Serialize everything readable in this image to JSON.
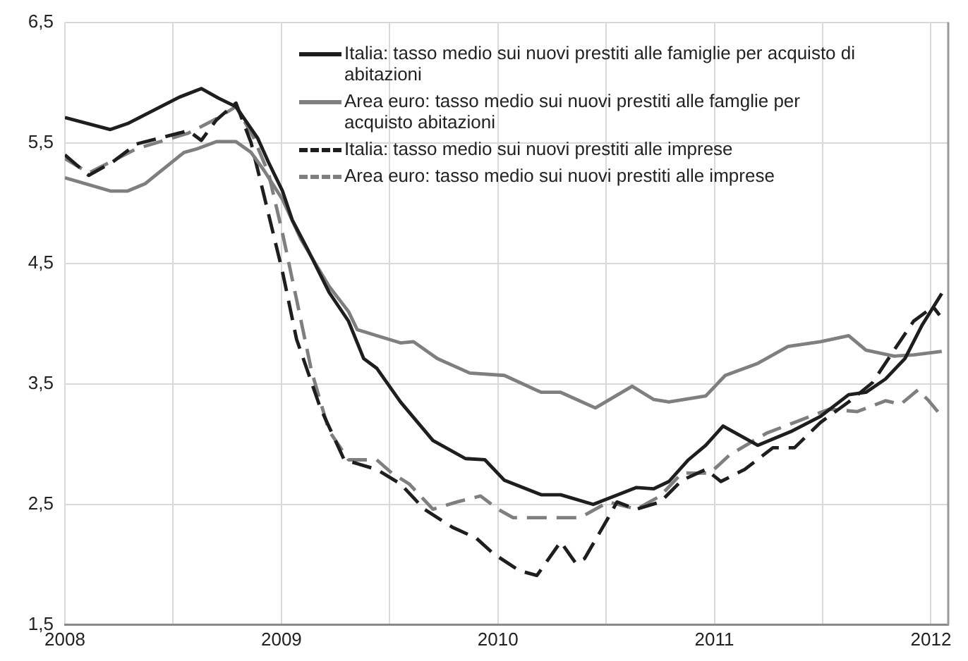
{
  "chart_data": {
    "type": "line",
    "xlim": [
      2008,
      2012.08
    ],
    "ylim": [
      1.5,
      6.5
    ],
    "xticks": [
      2008,
      {
        "value": 2008.5,
        "label": null
      },
      2009,
      {
        "value": 2009.5,
        "label": null
      },
      2010,
      {
        "value": 2010.5,
        "label": null
      },
      2011,
      {
        "value": 2011.5,
        "label": null
      },
      2012
    ],
    "yticks": [
      {
        "value": 1.5,
        "label": "1,5"
      },
      {
        "value": 2.5,
        "label": "2,5"
      },
      {
        "value": 3.5,
        "label": "3,5"
      },
      {
        "value": 4.5,
        "label": "4,5"
      },
      {
        "value": 5.5,
        "label": "5,5"
      },
      {
        "value": 6.5,
        "label": "6,5"
      }
    ],
    "grid": true,
    "legend": "top right",
    "marker": "none",
    "series": [
      {
        "name": "Italia: tasso medio sui nuovi prestiti alle famiglie per acquisto di abitazioni",
        "color": "#1e1e1e",
        "line_style": "solid",
        "x": [
          2008,
          2008.21,
          2008.29,
          2008.53,
          2008.63,
          2008.71,
          2008.79,
          2008.89,
          2008.94,
          2009.005,
          2009.05,
          2009.12,
          2009.22,
          2009.31,
          2009.38,
          2009.44,
          2009.55,
          2009.7,
          2009.85,
          2009.94,
          2010.03,
          2010.2,
          2010.29,
          2010.44,
          2010.64,
          2010.72,
          2010.79,
          2010.88,
          2010.96,
          2011.04,
          2011.2,
          2011.36,
          2011.49,
          2011.62,
          2011.7,
          2011.79,
          2011.88,
          2011.96,
          2012.05
        ],
        "values": [
          5.71,
          5.61,
          5.66,
          5.88,
          5.95,
          5.87,
          5.8,
          5.54,
          5.34,
          5.1,
          4.86,
          4.62,
          4.26,
          4.02,
          3.71,
          3.63,
          3.35,
          3.03,
          2.88,
          2.87,
          2.7,
          2.58,
          2.58,
          2.5,
          2.64,
          2.63,
          2.69,
          2.87,
          2.99,
          3.15,
          2.99,
          3.11,
          3.23,
          3.41,
          3.43,
          3.54,
          3.71,
          3.99,
          4.25
        ]
      },
      {
        "name": "Area euro: tasso medio sui nuovi prestiti alle famglie per acquisto abitazioni",
        "color": "#7f7f7f",
        "line_style": "solid",
        "x": [
          2008,
          2008.21,
          2008.29,
          2008.37,
          2008.55,
          2008.61,
          2008.7,
          2008.79,
          2008.86,
          2008.92,
          2009.005,
          2009.09,
          2009.22,
          2009.31,
          2009.35,
          2009.44,
          2009.55,
          2009.61,
          2009.72,
          2009.87,
          2010.03,
          2010.2,
          2010.29,
          2010.45,
          2010.62,
          2010.72,
          2010.79,
          2010.96,
          2011.05,
          2011.2,
          2011.34,
          2011.49,
          2011.62,
          2011.7,
          2011.83,
          2011.92,
          2012.05
        ],
        "values": [
          5.21,
          5.1,
          5.1,
          5.16,
          5.42,
          5.45,
          5.51,
          5.51,
          5.42,
          5.27,
          5.03,
          4.7,
          4.31,
          4.1,
          3.95,
          3.9,
          3.84,
          3.85,
          3.71,
          3.59,
          3.57,
          3.43,
          3.43,
          3.3,
          3.48,
          3.37,
          3.35,
          3.4,
          3.57,
          3.67,
          3.81,
          3.85,
          3.9,
          3.78,
          3.73,
          3.74,
          3.77
        ]
      },
      {
        "name": "Italia: tasso medio sui nuovi prestiti alle imprese",
        "color": "#1e1e1e",
        "line_style": "dashed",
        "x": [
          2008,
          2008.11,
          2008.22,
          2008.33,
          2008.44,
          2008.57,
          2008.63,
          2008.7,
          2008.79,
          2008.86,
          2008.92,
          2009.005,
          2009.07,
          2009.18,
          2009.29,
          2009.44,
          2009.55,
          2009.66,
          2009.79,
          2009.9,
          2009.98,
          2010.1,
          2010.18,
          2010.29,
          2010.36,
          2010.4,
          2010.51,
          2010.55,
          2010.64,
          2010.75,
          2010.85,
          2010.96,
          2011.03,
          2011.14,
          2011.27,
          2011.37,
          2011.49,
          2011.62,
          2011.73,
          2011.83,
          2011.92,
          2012.01,
          2012.04
        ],
        "values": [
          5.4,
          5.23,
          5.34,
          5.49,
          5.54,
          5.6,
          5.52,
          5.69,
          5.83,
          5.5,
          5.06,
          4.43,
          3.87,
          3.3,
          2.87,
          2.79,
          2.67,
          2.46,
          2.31,
          2.22,
          2.09,
          1.95,
          1.91,
          2.19,
          2.01,
          2.05,
          2.39,
          2.52,
          2.46,
          2.52,
          2.7,
          2.79,
          2.69,
          2.79,
          2.97,
          2.97,
          3.18,
          3.35,
          3.51,
          3.78,
          4.02,
          4.14,
          4.07
        ]
      },
      {
        "name": "Area euro: tasso medio sui nuovi prestiti alle imprese",
        "color": "#7f7f7f",
        "line_style": "dashed",
        "x": [
          2008,
          2008.11,
          2008.33,
          2008.57,
          2008.7,
          2008.79,
          2008.87,
          2008.94,
          2009.005,
          2009.07,
          2009.14,
          2009.22,
          2009.31,
          2009.44,
          2009.51,
          2009.59,
          2009.7,
          2009.81,
          2009.92,
          2010,
          2010.07,
          2010.2,
          2010.38,
          2010.51,
          2010.64,
          2010.75,
          2010.85,
          2010.98,
          2011.07,
          2011.24,
          2011.37,
          2011.53,
          2011.66,
          2011.79,
          2011.86,
          2011.94,
          2011.99,
          2012.05
        ],
        "values": [
          5.37,
          5.25,
          5.45,
          5.58,
          5.7,
          5.8,
          5.55,
          5.25,
          4.75,
          4.2,
          3.6,
          3.11,
          2.87,
          2.87,
          2.76,
          2.67,
          2.46,
          2.52,
          2.57,
          2.46,
          2.39,
          2.39,
          2.39,
          2.52,
          2.46,
          2.57,
          2.76,
          2.76,
          2.91,
          3.09,
          3.18,
          3.29,
          3.27,
          3.36,
          3.33,
          3.45,
          3.36,
          3.23
        ]
      }
    ]
  }
}
